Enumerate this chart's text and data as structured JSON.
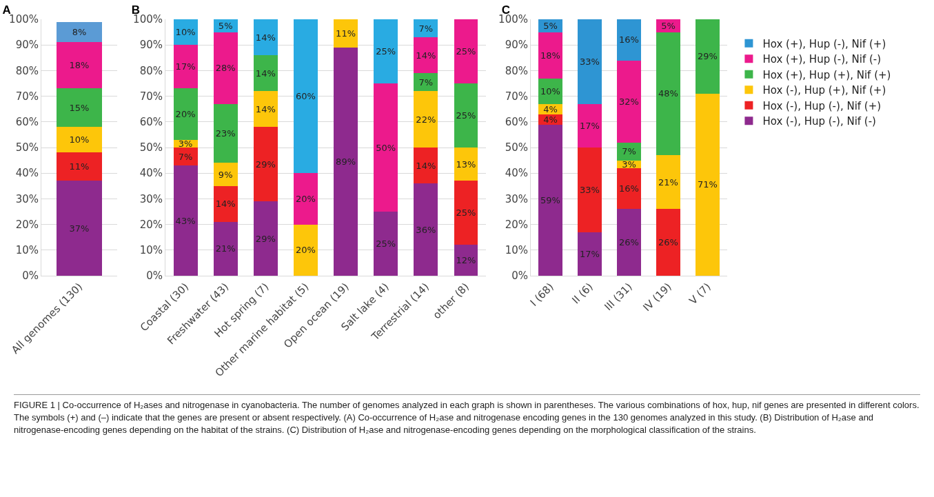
{
  "chart_data": [
    {
      "type": "bar",
      "title": "A",
      "stacked": true,
      "grid": "y",
      "legend": false,
      "categories": [
        "All genomes (130)"
      ],
      "ylim": [
        0,
        100
      ],
      "yticks": [
        {
          "value": 0,
          "label": "0%"
        },
        {
          "value": 10,
          "label": "10%"
        },
        {
          "value": 20,
          "label": "20%"
        },
        {
          "value": 30,
          "label": "30%"
        },
        {
          "value": 40,
          "label": "40%"
        },
        {
          "value": 50,
          "label": "50%"
        },
        {
          "value": 60,
          "label": "60%"
        },
        {
          "value": 70,
          "label": "70%"
        },
        {
          "value": 80,
          "label": "80%"
        },
        {
          "value": 90,
          "label": "90%"
        },
        {
          "value": 100,
          "label": "100%"
        }
      ],
      "series": [
        {
          "color": "#8e2a8e",
          "values": [
            37
          ],
          "value_labels": [
            "37%"
          ]
        },
        {
          "color": "#ed2224",
          "values": [
            11
          ],
          "value_labels": [
            "11%"
          ]
        },
        {
          "color": "#fdc60a",
          "values": [
            10
          ],
          "value_labels": [
            "10%"
          ]
        },
        {
          "color": "#3db54a",
          "values": [
            15
          ],
          "value_labels": [
            "15%"
          ]
        },
        {
          "color": "#ec1a8c",
          "values": [
            18
          ],
          "value_labels": [
            "18%"
          ]
        },
        {
          "color": "#5b9bd5",
          "values": [
            8
          ],
          "value_labels": [
            "8%"
          ]
        }
      ],
      "annotations": [
        "FIGURE 1 | Co-occurrence of H₂ases and nitrogenase in cyanobacteria. The number of genomes analyzed in each graph is shown in parentheses. The various combinations of hox, hup, nif genes are presented in different colors. The symbols (+) and (–) indicate that the genes are present or absent respectively. (A) Co-occurrence of H₂ase and nitrogenase encoding genes in the 130 genomes analyzed in this study. (B) Distribution of H₂ase and nitrogenase-encoding genes depending on the habitat of the strains. (C) Distribution of H₂ase and nitrogenase-encoding genes depending on the morphological classification of the strains."
      ]
    },
    {
      "type": "bar",
      "title": "B",
      "stacked": true,
      "grid": "y",
      "legend": false,
      "categories": [
        "Coastal (30)",
        "Freshwater (43)",
        "Hot spring (7)",
        "Other marine habitat (5)",
        "Open ocean (19)",
        "Salt lake (4)",
        "Terrestrial (14)",
        "other (8)"
      ],
      "ylim": [
        0,
        100
      ],
      "yticks": [
        {
          "value": 0,
          "label": "0%"
        },
        {
          "value": 10,
          "label": "10%"
        },
        {
          "value": 20,
          "label": "20%"
        },
        {
          "value": 30,
          "label": "30%"
        },
        {
          "value": 40,
          "label": "40%"
        },
        {
          "value": 50,
          "label": "50%"
        },
        {
          "value": 60,
          "label": "60%"
        },
        {
          "value": 70,
          "label": "70%"
        },
        {
          "value": 80,
          "label": "80%"
        },
        {
          "value": 90,
          "label": "90%"
        },
        {
          "value": 100,
          "label": "100%"
        }
      ],
      "series": [
        {
          "color": "#8e2a8e",
          "values": [
            43,
            21,
            29,
            null,
            89,
            25,
            36,
            12
          ],
          "value_labels": [
            "43%",
            "21%",
            "29%",
            null,
            "89%",
            "25%",
            "36%",
            "12%"
          ]
        },
        {
          "color": "#ed2224",
          "values": [
            7,
            14,
            29,
            null,
            null,
            null,
            14,
            25
          ],
          "value_labels": [
            "7%",
            "14%",
            "29%",
            null,
            null,
            null,
            "14%",
            "25%"
          ]
        },
        {
          "color": "#fdc60a",
          "values": [
            3,
            9,
            14,
            20,
            11,
            null,
            22,
            13
          ],
          "value_labels": [
            "3%",
            "9%",
            "14%",
            "20%",
            "11%",
            null,
            "22%",
            "13%"
          ]
        },
        {
          "color": "#3db54a",
          "values": [
            20,
            23,
            14,
            null,
            null,
            null,
            7,
            25
          ],
          "value_labels": [
            "20%",
            "23%",
            "14%",
            null,
            null,
            null,
            "7%",
            "25%"
          ]
        },
        {
          "color": "#ec1a8c",
          "values": [
            17,
            28,
            null,
            20,
            null,
            50,
            14,
            25
          ],
          "value_labels": [
            "17%",
            "28%",
            null,
            "20%",
            null,
            "50%",
            "14%",
            "25%"
          ]
        },
        {
          "color": "#29abe2",
          "values": [
            10,
            5,
            14,
            60,
            null,
            25,
            7,
            null
          ],
          "value_labels": [
            "10%",
            "5%",
            "14%",
            "60%",
            null,
            "25%",
            "7%",
            null
          ]
        }
      ]
    },
    {
      "type": "bar",
      "title": "C",
      "stacked": true,
      "grid": "y",
      "legend": "right",
      "categories": [
        "I (68)",
        "II (6)",
        "III (31)",
        "IV (19)",
        "V (7)"
      ],
      "ylim": [
        0,
        100
      ],
      "yticks": [
        {
          "value": 0,
          "label": "0%"
        },
        {
          "value": 10,
          "label": "10%"
        },
        {
          "value": 20,
          "label": "20%"
        },
        {
          "value": 30,
          "label": "30%"
        },
        {
          "value": 40,
          "label": "40%"
        },
        {
          "value": 50,
          "label": "50%"
        },
        {
          "value": 60,
          "label": "60%"
        },
        {
          "value": 70,
          "label": "70%"
        },
        {
          "value": 80,
          "label": "80%"
        },
        {
          "value": 90,
          "label": "90%"
        },
        {
          "value": 100,
          "label": "100%"
        }
      ],
      "series": [
        {
          "name": "Hox (-), Hup (-), Nif (-)",
          "color": "#8e2a8e",
          "values": [
            59,
            17,
            26,
            null,
            null
          ],
          "value_labels": [
            "59%",
            "17%",
            "26%",
            null,
            null
          ]
        },
        {
          "name": "Hox (-), Hup (-), Nif (+)",
          "color": "#ed2224",
          "values": [
            4,
            33,
            16,
            26,
            null
          ],
          "value_labels": [
            "4%",
            "33%",
            "16%",
            "26%",
            null
          ]
        },
        {
          "name": "Hox (-), Hup (+), Nif (+)",
          "color": "#fdc60a",
          "values": [
            4,
            null,
            3,
            21,
            71
          ],
          "value_labels": [
            "4%",
            null,
            "3%",
            "21%",
            "71%"
          ]
        },
        {
          "name": "Hox (+), Hup (+), Nif (+)",
          "color": "#3db54a",
          "values": [
            10,
            null,
            7,
            48,
            29
          ],
          "value_labels": [
            "10%",
            null,
            "7%",
            "48%",
            "29%"
          ]
        },
        {
          "name": "Hox (+), Hup (-), Nif (-)",
          "color": "#ec1a8c",
          "values": [
            18,
            17,
            32,
            5,
            null
          ],
          "value_labels": [
            "18%",
            "17%",
            "32%",
            "5%",
            null
          ]
        },
        {
          "name": "Hox (+), Hup (-), Nif (+)",
          "color": "#2e95d3",
          "values": [
            5,
            33,
            16,
            null,
            null
          ],
          "value_labels": [
            "5%",
            "33%",
            "16%",
            null,
            null
          ]
        }
      ]
    }
  ]
}
